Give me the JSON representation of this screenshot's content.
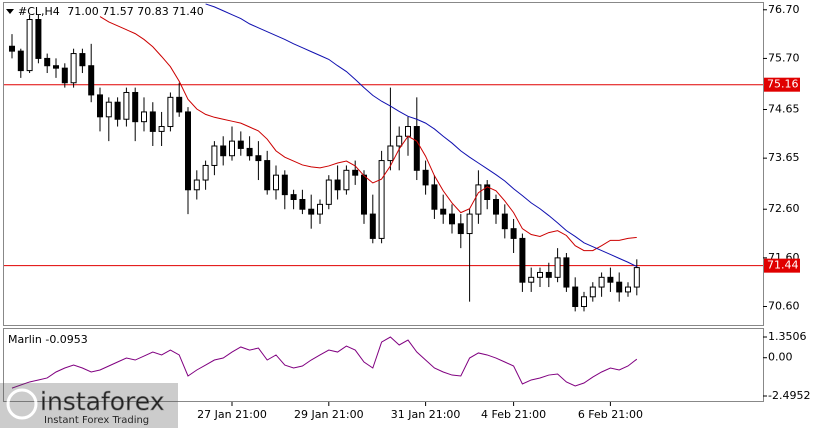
{
  "chart_data": [
    {
      "type": "candlestick",
      "title": "#CL,H4",
      "header_labels": [
        "71.00",
        "71.57",
        "70.83",
        "71.40"
      ],
      "categories": [
        null,
        null,
        null,
        null,
        null,
        null,
        null,
        null,
        null,
        null,
        null,
        null,
        null,
        null,
        null,
        null,
        null,
        null,
        null,
        null,
        null,
        null,
        null,
        null,
        null,
        "27 Jan 21:00",
        null,
        null,
        null,
        null,
        null,
        null,
        null,
        null,
        null,
        null,
        "29 Jan 21:00",
        null,
        null,
        null,
        null,
        null,
        null,
        null,
        null,
        null,
        null,
        "31 Jan 21:00",
        null,
        null,
        null,
        null,
        null,
        null,
        null,
        null,
        null,
        "4 Feb 21:00",
        null,
        null,
        null,
        null,
        null,
        null,
        null,
        null,
        null,
        null,
        "6 Feb 21:00",
        null,
        null,
        null
      ],
      "open": [
        75.95,
        75.85,
        75.45,
        76.5,
        75.7,
        75.55,
        75.5,
        75.2,
        75.8,
        75.55,
        74.95,
        74.5,
        74.8,
        74.45,
        75.0,
        74.4,
        74.6,
        74.2,
        74.3,
        74.9,
        74.6,
        73.0,
        73.2,
        73.5,
        73.9,
        73.7,
        74.0,
        73.85,
        73.7,
        73.6,
        73.0,
        73.3,
        72.9,
        72.8,
        72.6,
        72.5,
        72.7,
        73.2,
        73.0,
        73.4,
        73.3,
        72.5,
        72.0,
        73.6,
        73.9,
        74.1,
        74.3,
        73.4,
        73.1,
        72.6,
        72.5,
        72.3,
        72.1,
        72.5,
        73.1,
        72.8,
        72.5,
        72.2,
        72.0,
        71.1,
        71.2,
        71.3,
        71.2,
        71.6,
        71.0,
        70.6,
        70.8,
        71.0,
        71.2,
        71.1,
        70.9,
        71.0
      ],
      "high": [
        76.2,
        75.9,
        76.6,
        76.6,
        75.8,
        75.7,
        75.6,
        75.9,
        75.9,
        76.0,
        75.1,
        74.9,
        74.9,
        75.1,
        75.1,
        74.9,
        74.8,
        74.6,
        75.0,
        75.2,
        74.7,
        73.4,
        73.6,
        74.0,
        74.1,
        74.3,
        74.2,
        74.1,
        74.0,
        73.8,
        73.5,
        73.4,
        73.0,
        73.0,
        72.9,
        72.8,
        73.3,
        73.5,
        73.5,
        73.6,
        73.4,
        72.9,
        73.8,
        75.1,
        74.3,
        74.5,
        74.9,
        73.6,
        73.3,
        72.9,
        72.7,
        72.5,
        72.6,
        73.4,
        73.2,
        72.9,
        72.7,
        72.4,
        72.1,
        71.4,
        71.4,
        71.5,
        71.8,
        71.7,
        71.2,
        70.9,
        71.1,
        71.3,
        71.4,
        71.3,
        71.1,
        71.57
      ],
      "low": [
        75.7,
        75.3,
        75.4,
        75.6,
        75.4,
        75.3,
        75.1,
        75.1,
        75.4,
        74.8,
        74.2,
        74.0,
        74.3,
        74.3,
        74.0,
        74.2,
        73.9,
        73.9,
        74.2,
        74.5,
        72.5,
        72.8,
        73.0,
        73.3,
        73.5,
        73.6,
        73.7,
        73.6,
        73.2,
        72.9,
        72.8,
        72.6,
        72.6,
        72.5,
        72.2,
        72.3,
        72.6,
        72.8,
        72.9,
        73.1,
        72.3,
        71.9,
        71.9,
        73.4,
        73.4,
        73.7,
        73.2,
        72.9,
        72.4,
        72.3,
        72.1,
        71.8,
        70.7,
        72.3,
        72.6,
        72.3,
        72.0,
        71.7,
        70.9,
        70.9,
        71.0,
        71.0,
        71.1,
        70.9,
        70.5,
        70.5,
        70.7,
        70.8,
        70.9,
        70.7,
        70.8,
        70.83
      ],
      "close": [
        75.85,
        75.45,
        76.5,
        75.7,
        75.55,
        75.5,
        75.2,
        75.8,
        75.55,
        74.95,
        74.5,
        74.8,
        74.45,
        75.0,
        74.4,
        74.6,
        74.2,
        74.3,
        74.9,
        74.6,
        73.0,
        73.2,
        73.5,
        73.9,
        73.7,
        74.0,
        73.85,
        73.7,
        73.6,
        73.0,
        73.3,
        72.9,
        72.8,
        72.6,
        72.5,
        72.7,
        73.2,
        73.0,
        73.4,
        73.3,
        72.5,
        72.0,
        73.6,
        73.9,
        74.1,
        74.3,
        73.4,
        73.1,
        72.6,
        72.5,
        72.3,
        72.1,
        72.5,
        73.1,
        72.8,
        72.5,
        72.2,
        72.0,
        71.1,
        71.2,
        71.3,
        71.2,
        71.6,
        71.0,
        70.6,
        70.8,
        71.0,
        71.2,
        71.1,
        70.9,
        71.0,
        71.4
      ],
      "series": [
        {
          "color": "#cc0000",
          "values": [
            null,
            null,
            null,
            null,
            null,
            null,
            null,
            null,
            null,
            null,
            76.56,
            76.45,
            76.37,
            76.29,
            76.21,
            76.09,
            75.94,
            75.74,
            75.53,
            75.23,
            74.86,
            74.66,
            74.55,
            74.49,
            74.45,
            74.41,
            74.37,
            74.29,
            74.21,
            74.04,
            73.8,
            73.67,
            73.59,
            73.51,
            73.47,
            73.45,
            73.49,
            73.55,
            73.59,
            73.49,
            73.29,
            73.14,
            73.22,
            73.49,
            73.84,
            74.1,
            74.0,
            73.69,
            73.29,
            72.98,
            72.73,
            72.53,
            72.61,
            72.94,
            73.06,
            72.98,
            72.77,
            72.53,
            72.2,
            72.08,
            72.04,
            72.12,
            72.16,
            72.06,
            71.85,
            71.75,
            71.75,
            71.85,
            71.96,
            71.96,
            72.0,
            72.02
          ]
        },
        {
          "color": "#1010b0",
          "values": [
            null,
            null,
            null,
            null,
            null,
            null,
            null,
            null,
            null,
            null,
            null,
            null,
            null,
            null,
            null,
            null,
            null,
            null,
            null,
            null,
            null,
            null,
            76.82,
            76.76,
            76.68,
            76.6,
            76.52,
            76.41,
            76.33,
            76.25,
            76.17,
            76.09,
            76.0,
            75.92,
            75.84,
            75.76,
            75.68,
            75.55,
            75.43,
            75.27,
            75.1,
            74.94,
            74.82,
            74.72,
            74.61,
            74.51,
            74.45,
            74.37,
            74.25,
            74.1,
            73.96,
            73.8,
            73.67,
            73.55,
            73.43,
            73.31,
            73.18,
            73.02,
            72.88,
            72.73,
            72.61,
            72.47,
            72.32,
            72.16,
            72.04,
            71.91,
            71.83,
            71.75,
            71.67,
            71.59,
            71.51,
            71.42
          ]
        }
      ],
      "levels": [
        {
          "value": 75.16,
          "color": "#e00000"
        },
        {
          "value": 71.44,
          "color": "#e00000"
        }
      ],
      "ylim": [
        70.22,
        76.86
      ],
      "yticks": [
        {
          "value": 76.7,
          "label": "76.70"
        },
        {
          "value": 75.7,
          "label": "75.70"
        },
        {
          "value": 74.65,
          "label": "74.65"
        },
        {
          "value": 73.65,
          "label": "73.65"
        },
        {
          "value": 72.6,
          "label": "72.60"
        },
        {
          "value": 71.6,
          "label": "71.60"
        },
        {
          "value": 70.6,
          "label": "70.60"
        }
      ],
      "bull_color": "#ffffff",
      "bear_color": "#000000"
    },
    {
      "type": "line",
      "series": [
        {
          "name": "Marlin",
          "color": "#800080",
          "values": [
            -1.98,
            -1.78,
            -1.58,
            -1.45,
            -1.32,
            -0.93,
            -0.67,
            -0.48,
            -0.67,
            -0.93,
            -0.8,
            -0.54,
            -0.28,
            -0.02,
            -0.15,
            0.11,
            0.37,
            0.18,
            0.5,
            0.18,
            -1.19,
            -0.8,
            -0.48,
            -0.15,
            -0.02,
            0.37,
            0.7,
            0.5,
            0.63,
            -0.15,
            0.18,
            -0.48,
            -0.67,
            -0.54,
            -0.15,
            0.18,
            0.5,
            0.37,
            0.76,
            0.5,
            -0.28,
            -0.67,
            1.02,
            1.35,
            0.83,
            1.15,
            0.37,
            -0.15,
            -0.67,
            -0.93,
            -1.13,
            -1.19,
            -0.02,
            0.31,
            0.18,
            -0.02,
            -0.28,
            -0.54,
            -1.71,
            -1.45,
            -1.32,
            -1.13,
            -1.06,
            -1.58,
            -1.84,
            -1.65,
            -1.26,
            -0.93,
            -0.67,
            -0.8,
            -0.54,
            -0.0953
          ]
        }
      ],
      "ylim": [
        -2.756,
        1.807
      ],
      "yticks": [
        1.3506,
        {
          "value": 0,
          "label": "0.00"
        },
        -2.4952
      ]
    }
  ],
  "watermark": {
    "brand": "instaforex",
    "tagline": "Instant Forex Trading"
  }
}
